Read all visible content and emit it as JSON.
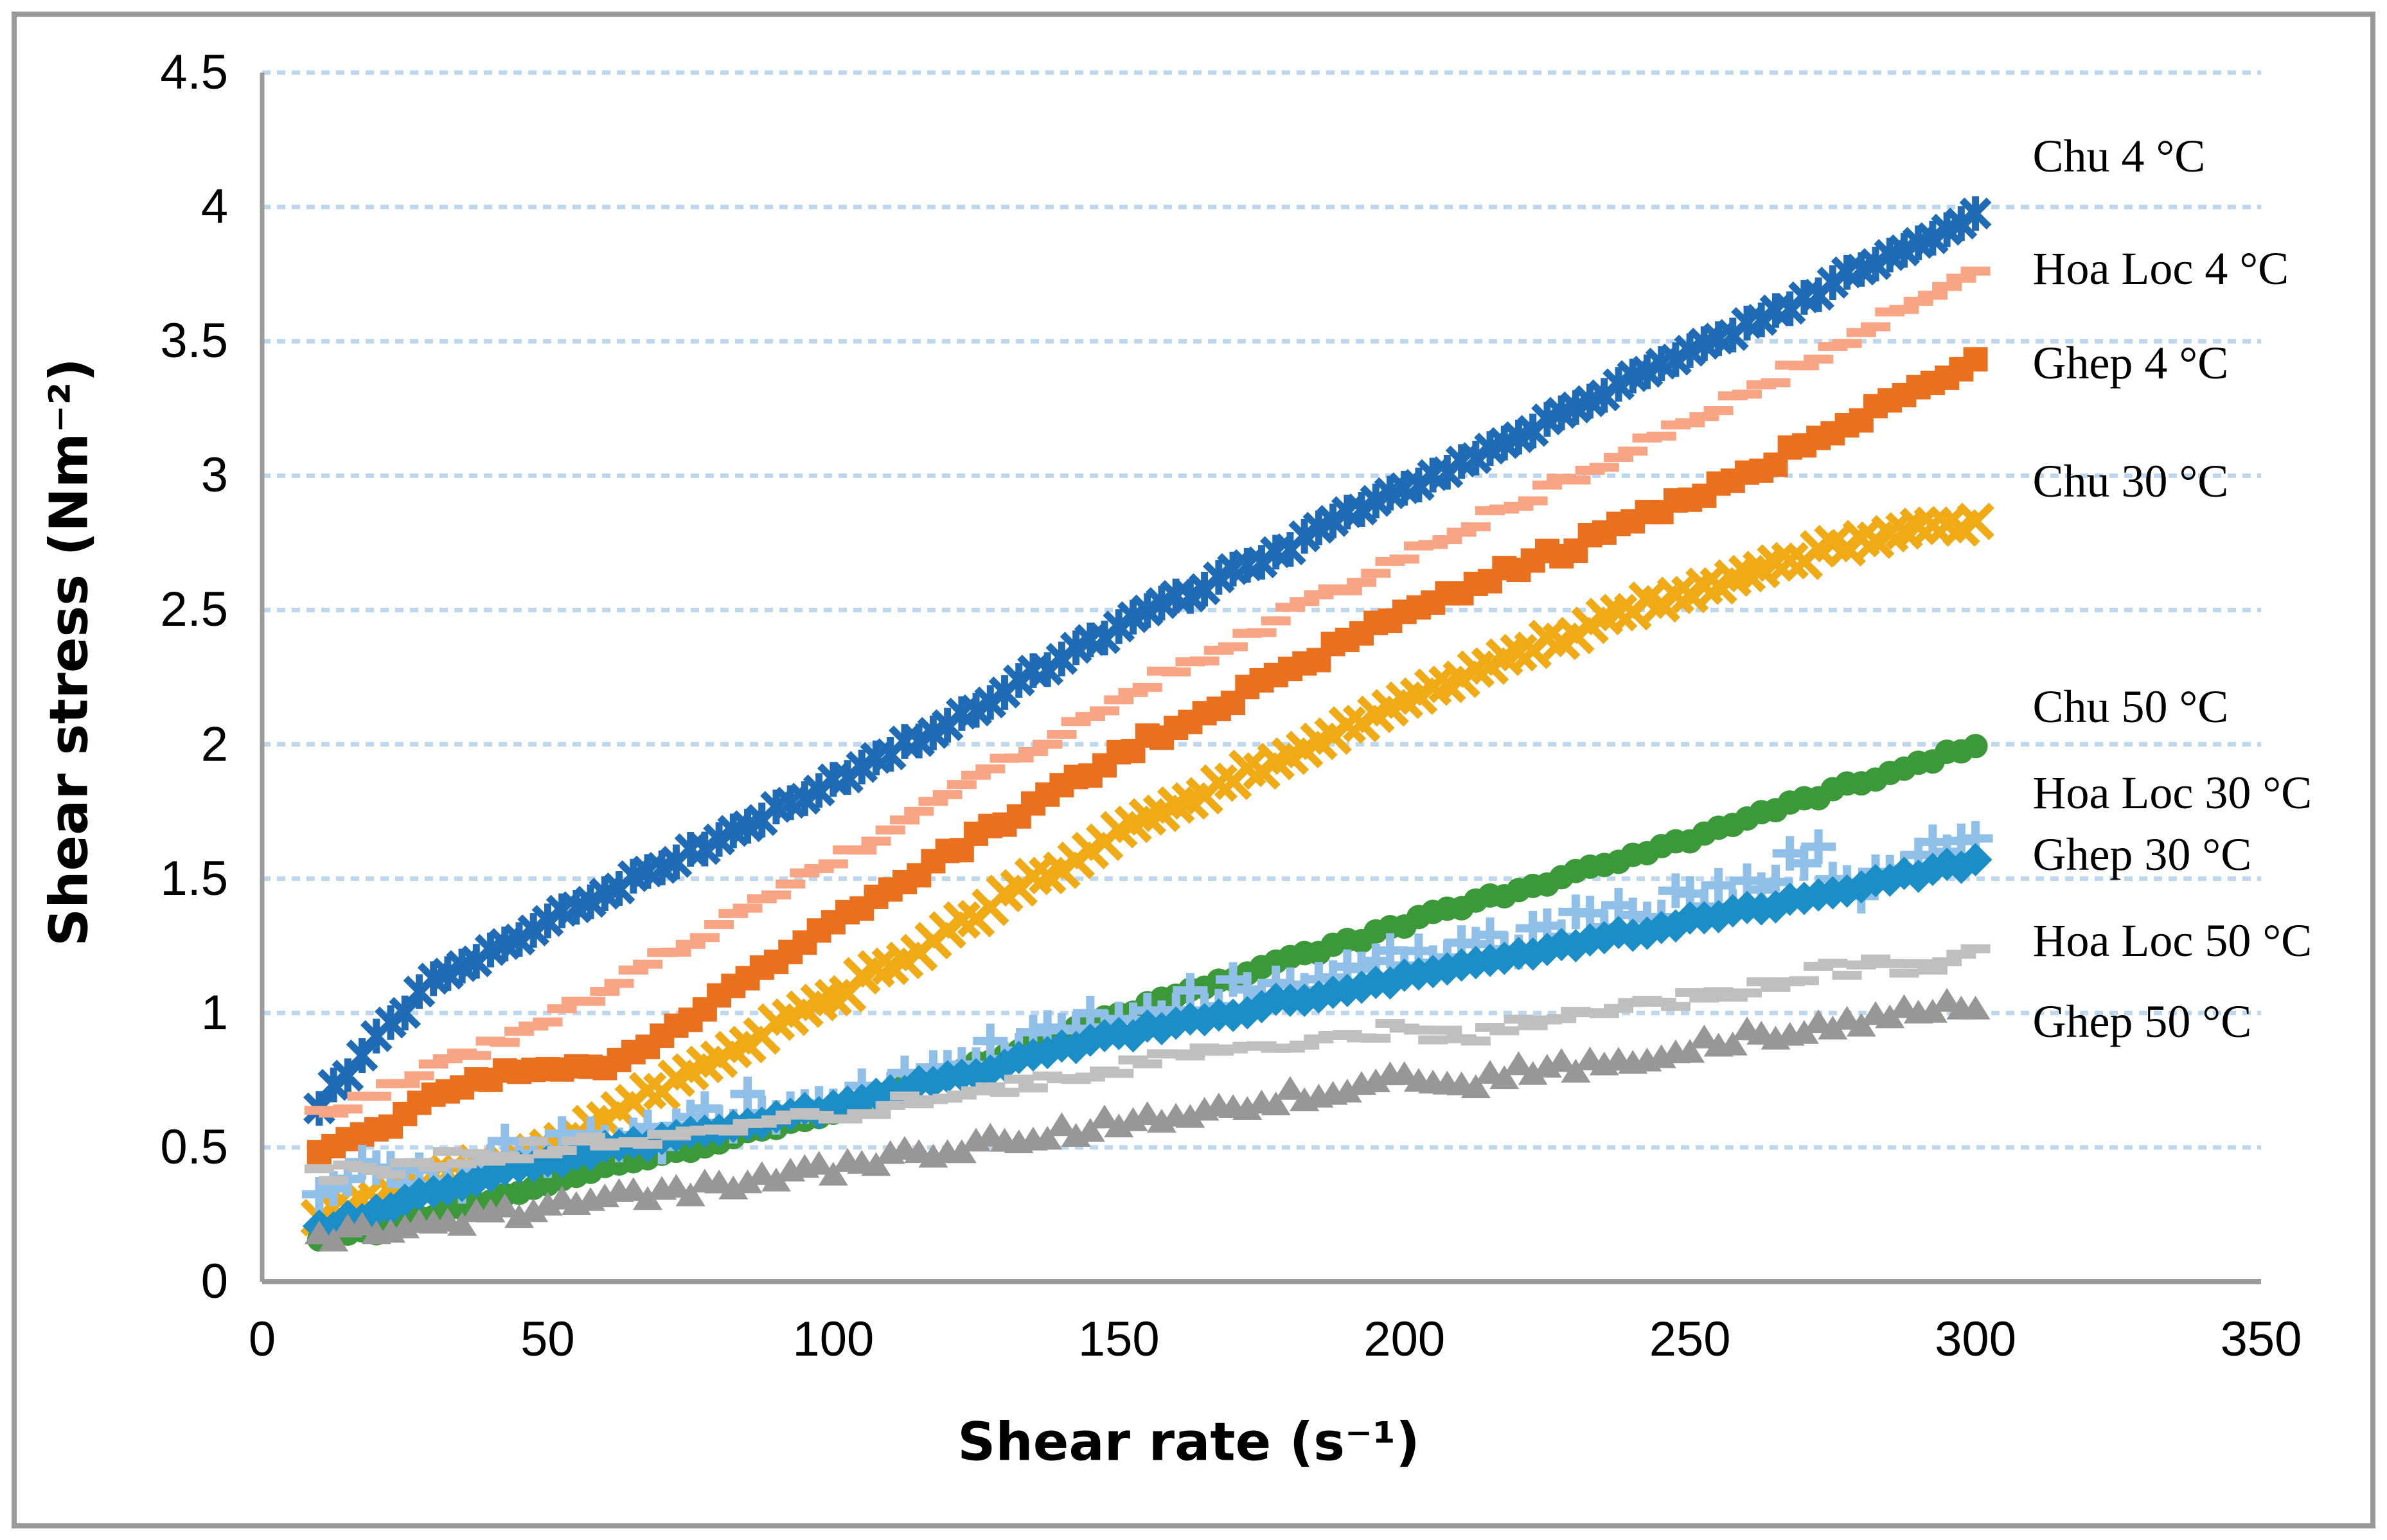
{
  "figure": {
    "border_color": "#999999",
    "axis_color": "#9B9B9B",
    "gridline_color": "#BDD7EE",
    "background": "#FFFFFF"
  },
  "chart_data": {
    "type": "scatter",
    "title": "",
    "xlabel": "Shear  rate (s⁻¹)",
    "ylabel": "Shear stress (Nm⁻²)",
    "xlim": [
      0,
      350
    ],
    "ylim": [
      0,
      4.5
    ],
    "grid": "horizontal dotted gridlines at every 0.5",
    "legend_position": "data labels at right edge of plot",
    "x_ticks": [
      {
        "value": 0,
        "label": "0"
      },
      {
        "value": 50,
        "label": "50"
      },
      {
        "value": 100,
        "label": "100"
      },
      {
        "value": 150,
        "label": "150"
      },
      {
        "value": 200,
        "label": "200"
      },
      {
        "value": 250,
        "label": "250"
      },
      {
        "value": 300,
        "label": "300"
      },
      {
        "value": 350,
        "label": "350"
      }
    ],
    "y_ticks": [
      {
        "value": 4.5,
        "label": "4.5"
      },
      {
        "value": 4,
        "label": "4"
      },
      {
        "value": 3.5,
        "label": "3.5"
      },
      {
        "value": 3,
        "label": "3"
      },
      {
        "value": 2.5,
        "label": "2.5"
      },
      {
        "value": 2,
        "label": "2"
      },
      {
        "value": 1.5,
        "label": "1.5"
      },
      {
        "value": 1,
        "label": "1"
      },
      {
        "value": 0.5,
        "label": "0.5"
      },
      {
        "value": 0,
        "label": "0"
      }
    ],
    "x": [
      10,
      20,
      30,
      40,
      50,
      60,
      70,
      80,
      90,
      100,
      110,
      120,
      130,
      140,
      150,
      160,
      170,
      180,
      190,
      200,
      210,
      220,
      230,
      240,
      250,
      260,
      270,
      280,
      290,
      300
    ],
    "series": [
      {
        "id": "chu_4",
        "label": "Chu 4 °C",
        "marker": "asterisk",
        "color": "#1F6BB5",
        "scatter": 0.015,
        "label_anchor": {
          "x": 310,
          "y": 4.18
        },
        "values": [
          0.66,
          0.9,
          1.12,
          1.22,
          1.34,
          1.45,
          1.55,
          1.65,
          1.76,
          1.86,
          1.97,
          2.08,
          2.2,
          2.32,
          2.44,
          2.54,
          2.64,
          2.74,
          2.85,
          2.95,
          3.05,
          3.15,
          3.25,
          3.36,
          3.46,
          3.56,
          3.66,
          3.77,
          3.87,
          3.97
        ]
      },
      {
        "id": "hoa_loc_4",
        "label": "Hoa Loc 4 °C",
        "marker": "dash",
        "color": "#F7A584",
        "scatter": 0.02,
        "label_anchor": {
          "x": 310,
          "y": 3.76
        },
        "values": [
          0.62,
          0.7,
          0.8,
          0.88,
          0.97,
          1.09,
          1.21,
          1.33,
          1.45,
          1.56,
          1.68,
          1.8,
          1.93,
          2.05,
          2.17,
          2.28,
          2.38,
          2.49,
          2.59,
          2.7,
          2.8,
          2.9,
          3.0,
          3.1,
          3.2,
          3.31,
          3.42,
          3.53,
          3.65,
          3.76
        ]
      },
      {
        "id": "ghep_4",
        "label": "Ghep 4 °C",
        "marker": "square",
        "color": "#E8701F",
        "scatter": 0.02,
        "label_anchor": {
          "x": 310,
          "y": 3.41
        },
        "values": [
          0.47,
          0.56,
          0.68,
          0.76,
          0.8,
          0.78,
          0.92,
          1.06,
          1.2,
          1.34,
          1.46,
          1.59,
          1.71,
          1.84,
          1.96,
          2.07,
          2.17,
          2.28,
          2.38,
          2.49,
          2.57,
          2.66,
          2.74,
          2.83,
          2.91,
          3.01,
          3.11,
          3.22,
          3.32,
          3.42
        ]
      },
      {
        "id": "chu_30",
        "label": "Chu 30 °C",
        "marker": "x",
        "color": "#F0AA15",
        "scatter": 0.02,
        "label_anchor": {
          "x": 310,
          "y": 2.97
        },
        "values": [
          0.25,
          0.32,
          0.38,
          0.44,
          0.5,
          0.61,
          0.72,
          0.83,
          0.95,
          1.06,
          1.18,
          1.3,
          1.43,
          1.55,
          1.67,
          1.77,
          1.87,
          1.96,
          2.06,
          2.15,
          2.25,
          2.34,
          2.42,
          2.5,
          2.57,
          2.64,
          2.7,
          2.76,
          2.8,
          2.83
        ]
      },
      {
        "id": "chu_50",
        "label": "Chu 50 °C",
        "marker": "circle",
        "color": "#3B9939",
        "scatter": 0.012,
        "label_anchor": {
          "x": 310,
          "y": 2.13
        },
        "values": [
          0.15,
          0.19,
          0.25,
          0.31,
          0.37,
          0.42,
          0.47,
          0.52,
          0.58,
          0.63,
          0.7,
          0.77,
          0.85,
          0.92,
          0.99,
          1.06,
          1.13,
          1.2,
          1.26,
          1.33,
          1.4,
          1.46,
          1.52,
          1.59,
          1.65,
          1.72,
          1.79,
          1.86,
          1.93,
          2.0
        ]
      },
      {
        "id": "hoa_loc_30",
        "label": "Hoa Loc 30 °C",
        "marker": "plus",
        "color": "#90C0E8",
        "scatter": 0.06,
        "label_anchor": {
          "x": 310,
          "y": 1.81
        },
        "values": [
          0.37,
          0.4,
          0.36,
          0.46,
          0.5,
          0.55,
          0.52,
          0.62,
          0.66,
          0.68,
          0.75,
          0.8,
          0.85,
          0.93,
          1.0,
          1.02,
          1.1,
          1.08,
          1.18,
          1.2,
          1.26,
          1.28,
          1.33,
          1.35,
          1.42,
          1.45,
          1.6,
          1.48,
          1.56,
          1.65
        ]
      },
      {
        "id": "ghep_30",
        "label": "Ghep  30 °C",
        "marker": "diamond",
        "color": "#1B8DC7",
        "scatter": 0.015,
        "label_anchor": {
          "x": 310,
          "y": 1.58
        },
        "values": [
          0.2,
          0.26,
          0.33,
          0.39,
          0.45,
          0.49,
          0.53,
          0.57,
          0.61,
          0.65,
          0.7,
          0.76,
          0.81,
          0.87,
          0.92,
          0.96,
          1.0,
          1.05,
          1.09,
          1.13,
          1.17,
          1.21,
          1.26,
          1.3,
          1.34,
          1.38,
          1.43,
          1.47,
          1.52,
          1.56
        ]
      },
      {
        "id": "hoa_loc_50",
        "label": "Hoa Loc 50 °C",
        "marker": "dash",
        "color": "#BFBFBF",
        "scatter": 0.03,
        "label_anchor": {
          "x": 310,
          "y": 1.26
        },
        "values": [
          0.4,
          0.42,
          0.45,
          0.47,
          0.5,
          0.52,
          0.54,
          0.57,
          0.6,
          0.62,
          0.66,
          0.69,
          0.73,
          0.77,
          0.8,
          0.83,
          0.86,
          0.89,
          0.92,
          0.95,
          0.91,
          0.96,
          0.99,
          1.02,
          1.05,
          1.1,
          1.14,
          1.18,
          1.16,
          1.25
        ]
      },
      {
        "id": "ghep_50",
        "label": "Ghep 50 °C",
        "marker": "triangle",
        "color": "#979797",
        "scatter": 0.03,
        "label_anchor": {
          "x": 310,
          "y": 0.96
        },
        "values": [
          0.17,
          0.19,
          0.22,
          0.25,
          0.28,
          0.31,
          0.33,
          0.36,
          0.39,
          0.42,
          0.46,
          0.49,
          0.53,
          0.56,
          0.6,
          0.63,
          0.66,
          0.69,
          0.72,
          0.75,
          0.73,
          0.78,
          0.81,
          0.84,
          0.88,
          0.91,
          0.94,
          0.97,
          1.0,
          1.04
        ]
      }
    ]
  }
}
